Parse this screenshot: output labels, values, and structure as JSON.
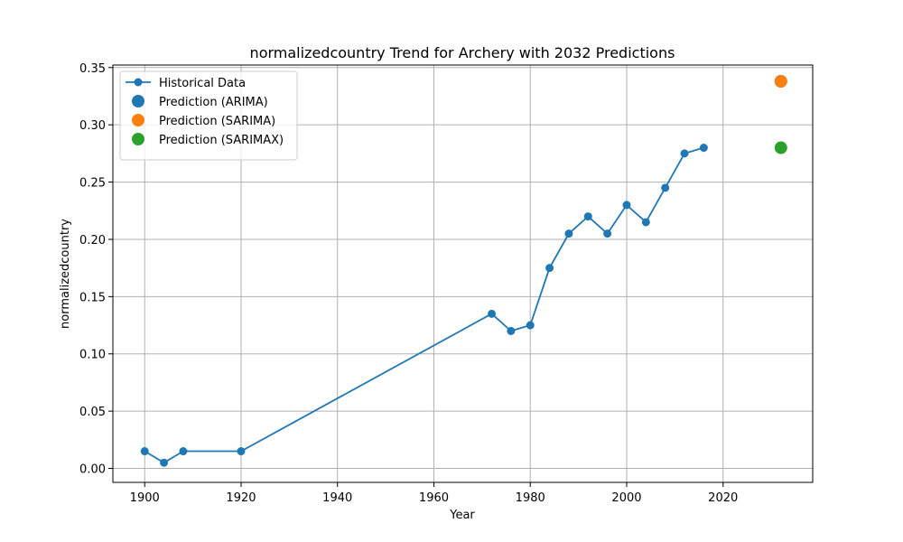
{
  "chart_data": {
    "type": "line",
    "title": "normalizedcountry Trend for Archery with 2032 Predictions",
    "xlabel": "Year",
    "ylabel": "normalizedcountry",
    "xlim": [
      1893.4,
      2038.6
    ],
    "ylim": [
      -0.0122,
      0.3522
    ],
    "xticks": [
      1900,
      1920,
      1940,
      1960,
      1980,
      2000,
      2020
    ],
    "yticks": [
      0.0,
      0.05,
      0.1,
      0.15,
      0.2,
      0.25,
      0.3,
      0.35
    ],
    "ytick_labels": [
      "0.00",
      "0.05",
      "0.10",
      "0.15",
      "0.20",
      "0.25",
      "0.30",
      "0.35"
    ],
    "grid": true,
    "legend_position": "top-left",
    "series": [
      {
        "name": "Historical Data",
        "kind": "line-marker",
        "color": "#1f77b4",
        "x": [
          1900,
          1904,
          1908,
          1920,
          1972,
          1976,
          1980,
          1984,
          1988,
          1992,
          1996,
          2000,
          2004,
          2008,
          2012,
          2016
        ],
        "y": [
          0.015,
          0.005,
          0.015,
          0.015,
          0.135,
          0.12,
          0.125,
          0.175,
          0.205,
          0.22,
          0.205,
          0.23,
          0.215,
          0.245,
          0.275,
          0.28
        ]
      },
      {
        "name": "Prediction (ARIMA)",
        "kind": "point",
        "color": "#1f77b4",
        "x": [
          2032
        ],
        "y": [
          0.338
        ]
      },
      {
        "name": "Prediction (SARIMA)",
        "kind": "point",
        "color": "#ff7f0e",
        "x": [
          2032
        ],
        "y": [
          0.338
        ]
      },
      {
        "name": "Prediction (SARIMAX)",
        "kind": "point",
        "color": "#2ca02c",
        "x": [
          2032
        ],
        "y": [
          0.28
        ]
      }
    ]
  }
}
